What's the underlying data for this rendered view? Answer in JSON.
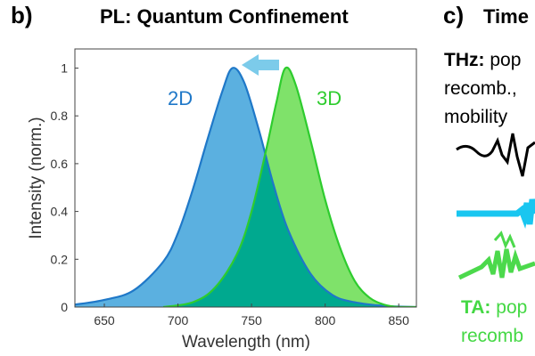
{
  "panel_b": {
    "letter": "b)",
    "title": "PL: Quantum Confinement"
  },
  "panel_c": {
    "letter": "c)",
    "title": "Time",
    "thz": {
      "bold": "THz:",
      "line1": "pop",
      "line2": "recomb.,",
      "line3": "mobility"
    },
    "ta": {
      "bold": "TA:",
      "line1": "pop",
      "line2": "recomb"
    }
  },
  "colors": {
    "series_2d": "#1f78c8",
    "fill_2d": "#5bb0e0",
    "series_3d": "#2ecc2e",
    "fill_3d": "#7fe26a",
    "overlap": "#00a98f",
    "arrow": "#7ccbea",
    "thz_wave": "#000000",
    "cyan_wave": "#19c6f0",
    "green_wave": "#4cd94c",
    "ta_text": "#44d844"
  },
  "chart_data": {
    "type": "area",
    "title": "",
    "xlabel": "Wavelength (nm)",
    "ylabel": "Intensity (norm.)",
    "xlim": [
      630,
      862
    ],
    "ylim": [
      0,
      1.08
    ],
    "xticks": [
      650,
      700,
      750,
      800,
      850
    ],
    "yticks": [
      0,
      0.2,
      0.4,
      0.6,
      0.8,
      1
    ],
    "ytick_labels": [
      "0",
      "0.2",
      "0.4",
      "0.6",
      "0.8",
      "1"
    ],
    "grid": false,
    "legend": "inline labels",
    "annotation": "arrow pointing from 3D peak toward 2D peak (blue shift)",
    "series": [
      {
        "name": "2D",
        "peak_wavelength": 737,
        "peak_intensity": 1.0,
        "x": [
          630,
          650,
          670,
          690,
          700,
          710,
          720,
          730,
          737,
          745,
          755,
          765,
          775,
          790,
          805,
          820,
          840,
          862
        ],
        "values": [
          0.01,
          0.03,
          0.07,
          0.19,
          0.31,
          0.49,
          0.7,
          0.9,
          1.0,
          0.94,
          0.74,
          0.51,
          0.32,
          0.14,
          0.05,
          0.02,
          0.005,
          0.0
        ]
      },
      {
        "name": "3D",
        "peak_wavelength": 773,
        "peak_intensity": 1.0,
        "x": [
          690,
          710,
          725,
          740,
          750,
          760,
          767,
          773,
          780,
          790,
          800,
          810,
          820,
          830,
          840,
          850,
          862
        ],
        "values": [
          0.0,
          0.02,
          0.08,
          0.22,
          0.4,
          0.66,
          0.86,
          1.0,
          0.93,
          0.7,
          0.45,
          0.25,
          0.11,
          0.04,
          0.01,
          0.0,
          0.0
        ]
      }
    ]
  }
}
